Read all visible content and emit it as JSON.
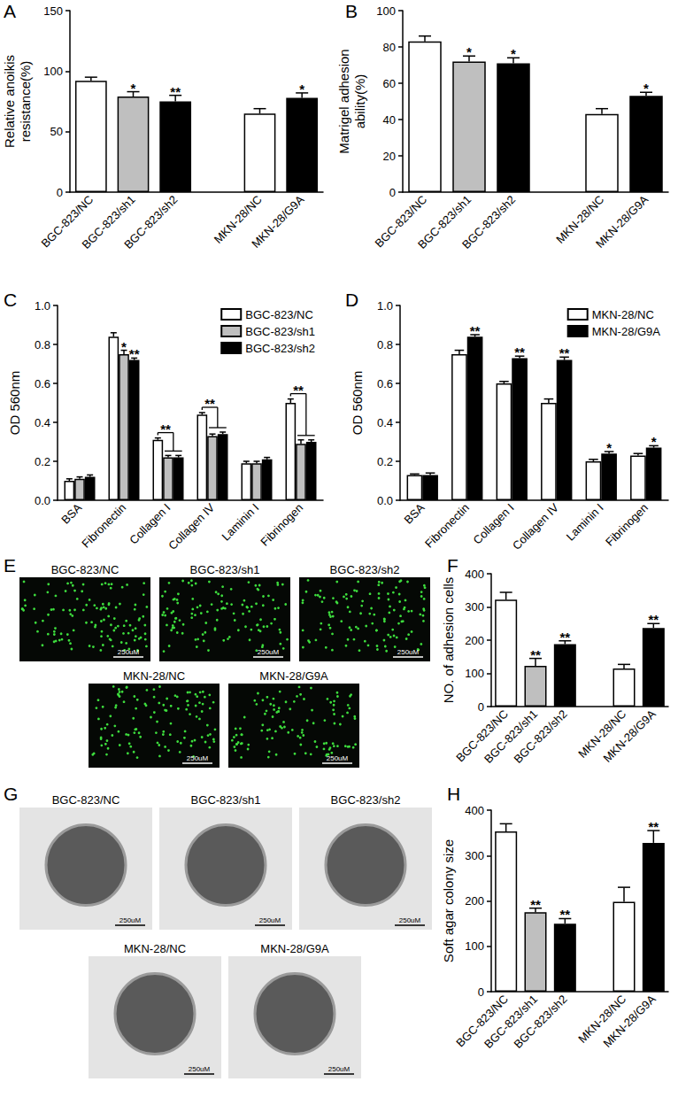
{
  "chart_data": [
    {
      "type": "bar",
      "panel": "A",
      "ylabel": "Relative anoikis\nresistance(%)",
      "categories": [
        "BGC-823/NC",
        "BGC-823/sh1",
        "BGC-823/sh2",
        null,
        "MKN-28/NC",
        "MKN-28/G9A"
      ],
      "values": [
        92,
        79,
        75,
        null,
        65,
        78
      ],
      "errors": [
        3,
        4,
        5,
        null,
        4,
        4
      ],
      "significance": [
        null,
        "*",
        "**",
        null,
        null,
        "*"
      ],
      "colors": [
        "#ffffff",
        "#bfbfbf",
        "#000000",
        null,
        "#ffffff",
        "#000000"
      ],
      "ylim": [
        0,
        150
      ],
      "yticks": [
        0,
        50,
        100,
        150
      ],
      "grid": false
    },
    {
      "type": "bar",
      "panel": "B",
      "ylabel": "Matrigel adhesion\nability(%)",
      "categories": [
        "BGC-823/NC",
        "BGC-823/sh1",
        "BGC-823/sh2",
        null,
        "MKN-28/NC",
        "MKN-28/G9A"
      ],
      "values": [
        83,
        72,
        71,
        null,
        43,
        53
      ],
      "errors": [
        3,
        3,
        3,
        null,
        3,
        2
      ],
      "significance": [
        null,
        "*",
        "*",
        null,
        null,
        "*"
      ],
      "colors": [
        "#ffffff",
        "#bfbfbf",
        "#000000",
        null,
        "#ffffff",
        "#000000"
      ],
      "ylim": [
        0,
        100
      ],
      "yticks": [
        0,
        20,
        40,
        60,
        80,
        100
      ],
      "grid": false
    },
    {
      "type": "bar",
      "panel": "C",
      "ylabel": "OD 560nm",
      "categories": [
        "BSA",
        "Fibronectin",
        "Collagen I",
        "Collagen IV",
        "Laminin I",
        "Fibrinogen"
      ],
      "series": [
        {
          "name": "BGC-823/NC",
          "color": "#ffffff",
          "values": [
            0.1,
            0.84,
            0.31,
            0.44,
            0.19,
            0.5
          ],
          "errors": [
            0.01,
            0.02,
            0.01,
            0.01,
            0.01,
            0.02
          ],
          "significance": [
            null,
            null,
            null,
            null,
            null,
            null
          ]
        },
        {
          "name": "BGC-823/sh1",
          "color": "#bfbfbf",
          "values": [
            0.11,
            0.75,
            0.22,
            0.33,
            0.19,
            0.29
          ],
          "errors": [
            0.01,
            0.02,
            0.01,
            0.01,
            0.01,
            0.02
          ],
          "significance": [
            null,
            "*",
            null,
            null,
            null,
            null
          ]
        },
        {
          "name": "BGC-823/sh2",
          "color": "#000000",
          "values": [
            0.12,
            0.72,
            0.22,
            0.34,
            0.21,
            0.3
          ],
          "errors": [
            0.01,
            0.01,
            0.01,
            0.01,
            0.01,
            0.01
          ],
          "significance": [
            null,
            "**",
            null,
            null,
            null,
            null
          ]
        }
      ],
      "brackets": [
        {
          "category": "Collagen I",
          "text": "**"
        },
        {
          "category": "Collagen IV",
          "text": "**"
        },
        {
          "category": "Fibrinogen",
          "text": "**"
        }
      ],
      "ylim": [
        0,
        1.0
      ],
      "yticks": [
        {
          "value": 0,
          "label": "0.0"
        },
        0.2,
        0.4,
        0.6,
        0.8,
        {
          "value": 1,
          "label": "1.0"
        }
      ],
      "legend": "upper right",
      "grid": false
    },
    {
      "type": "bar",
      "panel": "D",
      "ylabel": "OD 560nm",
      "categories": [
        "BSA",
        "Fibronectin",
        "Collagen I",
        "Collagen IV",
        "Laminin I",
        "Fibrinogen"
      ],
      "series": [
        {
          "name": "MKN-28/NC",
          "color": "#ffffff",
          "values": [
            0.13,
            0.75,
            0.6,
            0.5,
            0.2,
            0.23
          ],
          "errors": [
            0.005,
            0.02,
            0.01,
            0.02,
            0.01,
            0.01
          ],
          "significance": [
            null,
            null,
            null,
            null,
            null,
            null
          ]
        },
        {
          "name": "MKN-28/G9A",
          "color": "#000000",
          "values": [
            0.13,
            0.84,
            0.73,
            0.72,
            0.24,
            0.27
          ],
          "errors": [
            0.01,
            0.01,
            0.01,
            0.015,
            0.01,
            0.01
          ],
          "significance": [
            null,
            "**",
            "**",
            "**",
            "*",
            "*"
          ]
        }
      ],
      "ylim": [
        0,
        1.0
      ],
      "yticks": [
        {
          "value": 0,
          "label": "0.0"
        },
        0.2,
        0.4,
        0.6,
        0.8,
        {
          "value": 1,
          "label": "1.0"
        }
      ],
      "legend": "upper right",
      "grid": false
    },
    {
      "type": "image",
      "panel": "E",
      "images": [
        {
          "label": "BGC-823/NC",
          "scale_bar": "250uM"
        },
        {
          "label": "BGC-823/sh1",
          "scale_bar": "250uM"
        },
        {
          "label": "BGC-823/sh2",
          "scale_bar": "250uM"
        },
        {
          "label": "MKN-28/NC",
          "scale_bar": "250uM"
        },
        {
          "label": "MKN-28/G9A",
          "scale_bar": "250uM"
        }
      ]
    },
    {
      "type": "bar",
      "panel": "F",
      "ylabel": "NO. of adhesion cells",
      "categories": [
        "BGC-823/NC",
        "BGC-823/sh1",
        "BGC-823/sh2",
        null,
        "MKN-28/NC",
        "MKN-28/G9A"
      ],
      "values": [
        322,
        123,
        188,
        null,
        115,
        237
      ],
      "errors": [
        22,
        22,
        10,
        null,
        12,
        13
      ],
      "significance": [
        null,
        "**",
        "**",
        null,
        null,
        "**"
      ],
      "colors": [
        "#ffffff",
        "#bfbfbf",
        "#000000",
        null,
        "#ffffff",
        "#000000"
      ],
      "ylim": [
        0,
        400
      ],
      "yticks": [
        0,
        100,
        200,
        300,
        400
      ],
      "grid": false
    },
    {
      "type": "image",
      "panel": "G",
      "images": [
        {
          "label": "BGC-823/NC",
          "scale_bar": "250uM"
        },
        {
          "label": "BGC-823/sh1",
          "scale_bar": "250uM"
        },
        {
          "label": "BGC-823/sh2",
          "scale_bar": "250uM"
        },
        {
          "label": "MKN-28/NC",
          "scale_bar": "250uM"
        },
        {
          "label": "MKN-28/G9A",
          "scale_bar": "250uM"
        }
      ]
    },
    {
      "type": "bar",
      "panel": "H",
      "ylabel": "Soft agar colony size",
      "categories": [
        "BGC-823/NC",
        "BGC-823/sh1",
        "BGC-823/sh2",
        null,
        "MKN-28/NC",
        "MKN-28/G9A"
      ],
      "values": [
        353,
        175,
        150,
        null,
        198,
        328
      ],
      "errors": [
        17,
        9,
        11,
        null,
        32,
        27
      ],
      "significance": [
        null,
        "**",
        "**",
        null,
        null,
        "**"
      ],
      "colors": [
        "#ffffff",
        "#bfbfbf",
        "#000000",
        null,
        "#ffffff",
        "#000000"
      ],
      "ylim": [
        0,
        400
      ],
      "yticks": [
        0,
        100,
        200,
        300,
        400
      ],
      "grid": false
    }
  ]
}
